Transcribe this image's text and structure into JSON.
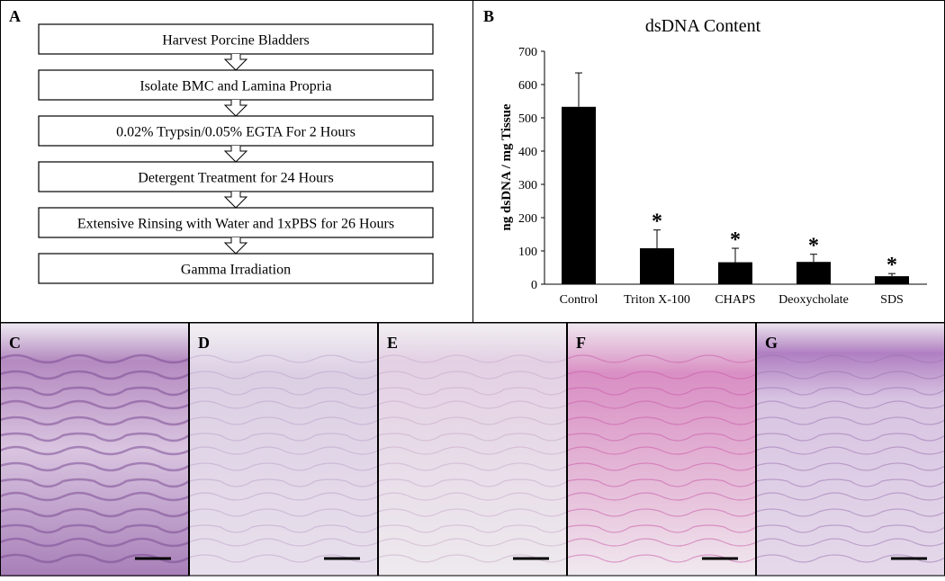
{
  "panel_a": {
    "label": "A",
    "steps": [
      "Harvest Porcine Bladders",
      "Isolate BMC and Lamina Propria",
      "0.02% Trypsin/0.05% EGTA For 2 Hours",
      "Detergent Treatment for 24 Hours",
      "Extensive Rinsing with Water and 1xPBS for 26 Hours",
      "Gamma Irradiation"
    ]
  },
  "chart_data": {
    "type": "bar",
    "panel_label": "B",
    "title": "dsDNA Content",
    "y_label": "ng dsDNA / mg Tissue",
    "categories": [
      "Control",
      "Triton X-100",
      "CHAPS",
      "Deoxycholate",
      "SDS"
    ],
    "values": [
      533,
      108,
      66,
      67,
      24
    ],
    "errors": [
      102,
      55,
      42,
      23,
      8
    ],
    "color": "#000000",
    "ylim": [
      0,
      700
    ],
    "yticks": [
      0,
      100,
      200,
      300,
      400,
      500,
      600,
      700
    ],
    "annotations": [
      {
        "category": "Triton X-100",
        "text": "*"
      },
      {
        "category": "CHAPS",
        "text": "*"
      },
      {
        "category": "Deoxycholate",
        "text": "*"
      },
      {
        "category": "SDS",
        "text": "*"
      }
    ]
  },
  "histology": {
    "panels": [
      {
        "label": "C"
      },
      {
        "label": "D"
      },
      {
        "label": "E"
      },
      {
        "label": "F"
      },
      {
        "label": "G"
      }
    ]
  }
}
